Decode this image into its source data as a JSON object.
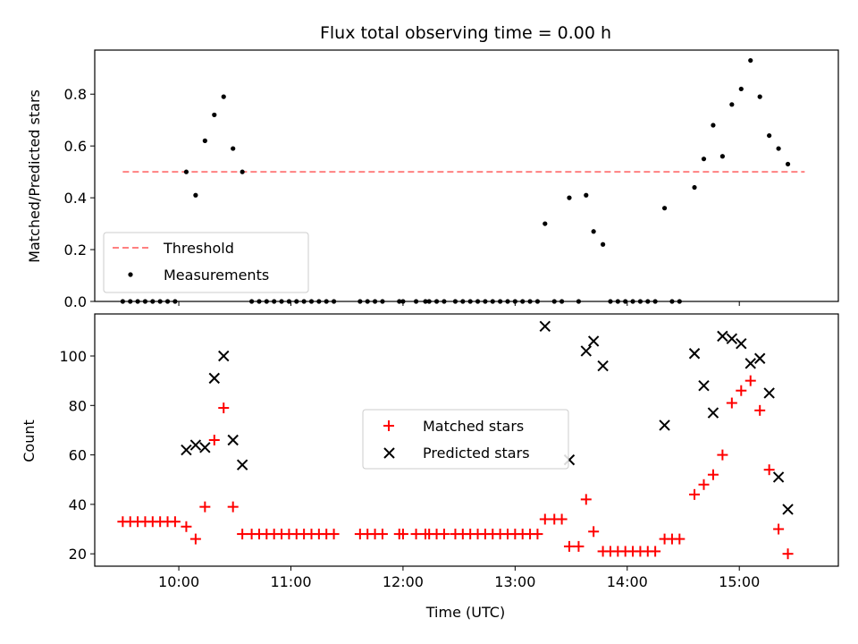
{
  "chart_data": [
    {
      "type": "scatter",
      "title": "Flux total observing time = 0.00 h",
      "xlabel": "",
      "ylabel": "Matched/Predicted stars",
      "ylim": [
        0.0,
        0.97
      ],
      "yticks": [
        0.0,
        0.2,
        0.4,
        0.6,
        0.8
      ],
      "ytick_labels": [
        "0.0",
        "0.2",
        "0.4",
        "0.6",
        "0.8"
      ],
      "xlim": [
        "09:15",
        "15:53"
      ],
      "legend_position": "lower-left",
      "threshold": {
        "name": "Threshold",
        "value": 0.5,
        "x_range": [
          "09:30",
          "15:35"
        ],
        "color": "#ff8080",
        "style": "dashed"
      },
      "series": [
        {
          "name": "Measurements",
          "color": "#000000",
          "marker": "dot",
          "points": [
            [
              "09:30",
              0.0
            ],
            [
              "09:34",
              0.0
            ],
            [
              "09:38",
              0.0
            ],
            [
              "09:42",
              0.0
            ],
            [
              "09:46",
              0.0
            ],
            [
              "09:50",
              0.0
            ],
            [
              "09:54",
              0.0
            ],
            [
              "09:58",
              0.0
            ],
            [
              "10:04",
              0.5
            ],
            [
              "10:09",
              0.41
            ],
            [
              "10:14",
              0.62
            ],
            [
              "10:19",
              0.72
            ],
            [
              "10:24",
              0.79
            ],
            [
              "10:29",
              0.59
            ],
            [
              "10:34",
              0.5
            ],
            [
              "10:39",
              0.0
            ],
            [
              "10:43",
              0.0
            ],
            [
              "10:47",
              0.0
            ],
            [
              "10:51",
              0.0
            ],
            [
              "10:55",
              0.0
            ],
            [
              "10:59",
              0.0
            ],
            [
              "11:03",
              0.0
            ],
            [
              "11:07",
              0.0
            ],
            [
              "11:11",
              0.0
            ],
            [
              "11:15",
              0.0
            ],
            [
              "11:19",
              0.0
            ],
            [
              "11:23",
              0.0
            ],
            [
              "11:37",
              0.0
            ],
            [
              "11:41",
              0.0
            ],
            [
              "11:45",
              0.0
            ],
            [
              "11:49",
              0.0
            ],
            [
              "11:58",
              0.0
            ],
            [
              "12:00",
              0.0
            ],
            [
              "12:07",
              0.0
            ],
            [
              "12:12",
              0.0
            ],
            [
              "12:14",
              0.0
            ],
            [
              "12:18",
              0.0
            ],
            [
              "12:22",
              0.0
            ],
            [
              "12:28",
              0.0
            ],
            [
              "12:32",
              0.0
            ],
            [
              "12:36",
              0.0
            ],
            [
              "12:40",
              0.0
            ],
            [
              "12:44",
              0.0
            ],
            [
              "12:48",
              0.0
            ],
            [
              "12:52",
              0.0
            ],
            [
              "12:56",
              0.0
            ],
            [
              "13:00",
              0.0
            ],
            [
              "13:04",
              0.0
            ],
            [
              "13:08",
              0.0
            ],
            [
              "13:12",
              0.0
            ],
            [
              "13:16",
              0.3
            ],
            [
              "13:21",
              0.0
            ],
            [
              "13:25",
              0.0
            ],
            [
              "13:29",
              0.4
            ],
            [
              "13:34",
              0.0
            ],
            [
              "13:38",
              0.41
            ],
            [
              "13:42",
              0.27
            ],
            [
              "13:47",
              0.22
            ],
            [
              "13:51",
              0.0
            ],
            [
              "13:55",
              0.0
            ],
            [
              "13:59",
              0.0
            ],
            [
              "14:03",
              0.0
            ],
            [
              "14:07",
              0.0
            ],
            [
              "14:11",
              0.0
            ],
            [
              "14:15",
              0.0
            ],
            [
              "14:20",
              0.36
            ],
            [
              "14:24",
              0.0
            ],
            [
              "14:28",
              0.0
            ],
            [
              "14:36",
              0.44
            ],
            [
              "14:41",
              0.55
            ],
            [
              "14:46",
              0.68
            ],
            [
              "14:51",
              0.56
            ],
            [
              "14:56",
              0.76
            ],
            [
              "15:01",
              0.82
            ],
            [
              "15:06",
              0.93
            ],
            [
              "15:11",
              0.79
            ],
            [
              "15:16",
              0.64
            ],
            [
              "15:21",
              0.59
            ],
            [
              "15:26",
              0.53
            ]
          ]
        }
      ]
    },
    {
      "type": "scatter",
      "title": "",
      "xlabel": "Time (UTC)",
      "ylabel": "Count",
      "ylim": [
        15,
        117
      ],
      "yticks": [
        20,
        40,
        60,
        80,
        100
      ],
      "ytick_labels": [
        "20",
        "40",
        "60",
        "80",
        "100"
      ],
      "xlim": [
        "09:15",
        "15:53"
      ],
      "xticks": [
        "10:00",
        "11:00",
        "12:00",
        "13:00",
        "14:00",
        "15:00"
      ],
      "xtick_labels": [
        "10:00",
        "11:00",
        "12:00",
        "13:00",
        "14:00",
        "15:00"
      ],
      "legend_position": "center",
      "series": [
        {
          "name": "Matched stars",
          "color": "#ff0000",
          "marker": "plus",
          "points": [
            [
              "09:30",
              33
            ],
            [
              "09:34",
              33
            ],
            [
              "09:38",
              33
            ],
            [
              "09:42",
              33
            ],
            [
              "09:46",
              33
            ],
            [
              "09:50",
              33
            ],
            [
              "09:54",
              33
            ],
            [
              "09:58",
              33
            ],
            [
              "10:04",
              31
            ],
            [
              "10:09",
              26
            ],
            [
              "10:14",
              39
            ],
            [
              "10:19",
              66
            ],
            [
              "10:24",
              79
            ],
            [
              "10:29",
              39
            ],
            [
              "10:34",
              28
            ],
            [
              "10:39",
              28
            ],
            [
              "10:43",
              28
            ],
            [
              "10:47",
              28
            ],
            [
              "10:51",
              28
            ],
            [
              "10:55",
              28
            ],
            [
              "10:59",
              28
            ],
            [
              "11:03",
              28
            ],
            [
              "11:07",
              28
            ],
            [
              "11:11",
              28
            ],
            [
              "11:15",
              28
            ],
            [
              "11:19",
              28
            ],
            [
              "11:23",
              28
            ],
            [
              "11:37",
              28
            ],
            [
              "11:41",
              28
            ],
            [
              "11:45",
              28
            ],
            [
              "11:49",
              28
            ],
            [
              "11:58",
              28
            ],
            [
              "12:00",
              28
            ],
            [
              "12:07",
              28
            ],
            [
              "12:12",
              28
            ],
            [
              "12:14",
              28
            ],
            [
              "12:18",
              28
            ],
            [
              "12:22",
              28
            ],
            [
              "12:28",
              28
            ],
            [
              "12:32",
              28
            ],
            [
              "12:36",
              28
            ],
            [
              "12:40",
              28
            ],
            [
              "12:44",
              28
            ],
            [
              "12:48",
              28
            ],
            [
              "12:52",
              28
            ],
            [
              "12:56",
              28
            ],
            [
              "13:00",
              28
            ],
            [
              "13:04",
              28
            ],
            [
              "13:08",
              28
            ],
            [
              "13:12",
              28
            ],
            [
              "13:16",
              34
            ],
            [
              "13:21",
              34
            ],
            [
              "13:25",
              34
            ],
            [
              "13:29",
              23
            ],
            [
              "13:34",
              23
            ],
            [
              "13:38",
              42
            ],
            [
              "13:42",
              29
            ],
            [
              "13:47",
              21
            ],
            [
              "13:51",
              21
            ],
            [
              "13:55",
              21
            ],
            [
              "13:59",
              21
            ],
            [
              "14:03",
              21
            ],
            [
              "14:07",
              21
            ],
            [
              "14:11",
              21
            ],
            [
              "14:15",
              21
            ],
            [
              "14:20",
              26
            ],
            [
              "14:24",
              26
            ],
            [
              "14:28",
              26
            ],
            [
              "14:36",
              44
            ],
            [
              "14:41",
              48
            ],
            [
              "14:46",
              52
            ],
            [
              "14:51",
              60
            ],
            [
              "14:56",
              81
            ],
            [
              "15:01",
              86
            ],
            [
              "15:06",
              90
            ],
            [
              "15:11",
              78
            ],
            [
              "15:16",
              54
            ],
            [
              "15:21",
              30
            ],
            [
              "15:26",
              20
            ]
          ]
        },
        {
          "name": "Predicted stars",
          "color": "#000000",
          "marker": "x",
          "points": [
            [
              "10:04",
              62
            ],
            [
              "10:09",
              64
            ],
            [
              "10:14",
              63
            ],
            [
              "10:19",
              91
            ],
            [
              "10:24",
              100
            ],
            [
              "10:29",
              66
            ],
            [
              "10:34",
              56
            ],
            [
              "13:16",
              112
            ],
            [
              "13:29",
              58
            ],
            [
              "13:38",
              102
            ],
            [
              "13:42",
              106
            ],
            [
              "13:47",
              96
            ],
            [
              "14:20",
              72
            ],
            [
              "14:36",
              101
            ],
            [
              "14:41",
              88
            ],
            [
              "14:46",
              77
            ],
            [
              "14:51",
              108
            ],
            [
              "14:56",
              107
            ],
            [
              "15:01",
              105
            ],
            [
              "15:06",
              97
            ],
            [
              "15:11",
              99
            ],
            [
              "15:16",
              85
            ],
            [
              "15:21",
              51
            ],
            [
              "15:26",
              38
            ]
          ]
        }
      ]
    }
  ]
}
